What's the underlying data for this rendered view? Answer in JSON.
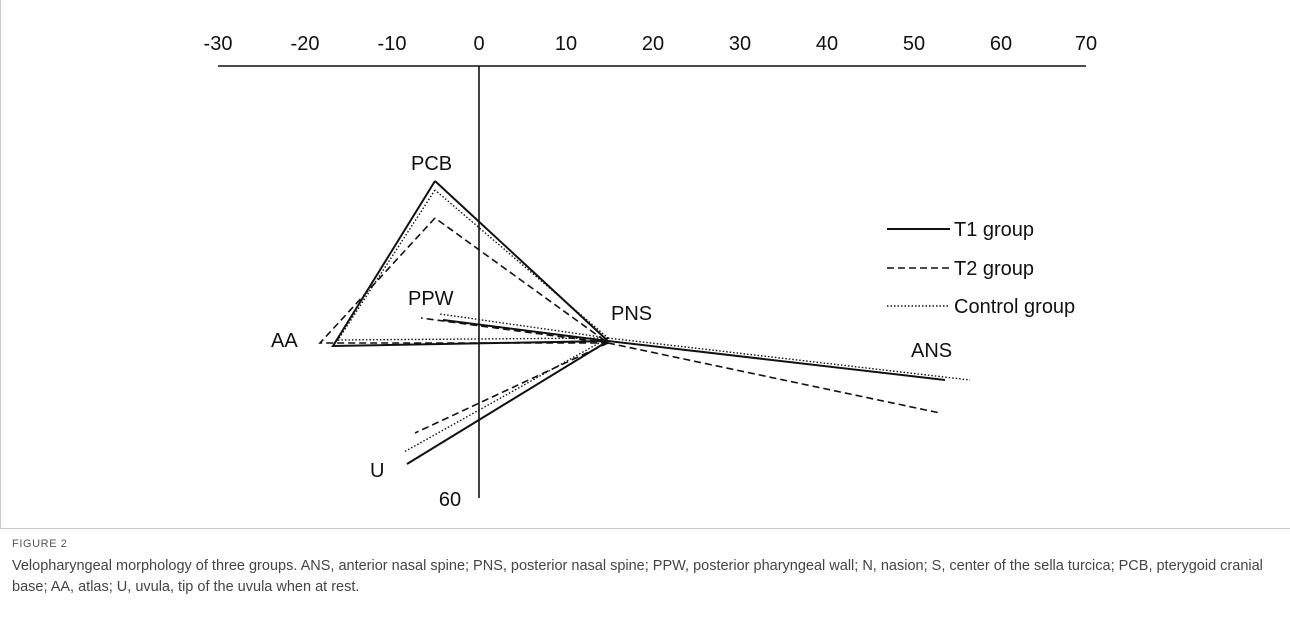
{
  "axis": {
    "x_ticks": [
      "-30",
      "-20",
      "-10",
      "0",
      "10",
      "20",
      "30",
      "40",
      "50",
      "60",
      "70"
    ],
    "y_tick": "60"
  },
  "points": {
    "pcb": "PCB",
    "ppw": "PPW",
    "pns": "PNS",
    "aa": "AA",
    "ans": "ANS",
    "u": "U"
  },
  "legend": {
    "t1": "T1 group",
    "t2": "T2 group",
    "control": "Control group"
  },
  "colors": {
    "line": "#111111",
    "caption": "#444444",
    "rule": "#c8c8c8"
  },
  "caption": {
    "title": "FIGURE 2",
    "text": "Velopharyngeal morphology of three groups. ANS, anterior nasal spine; PNS, posterior nasal spine; PPW, posterior pharyngeal wall; N, nasion; S, center of the sella turcica; PCB, pterygoid cranial base; AA, atlas; U, uvula, tip of the uvula when at rest."
  }
}
